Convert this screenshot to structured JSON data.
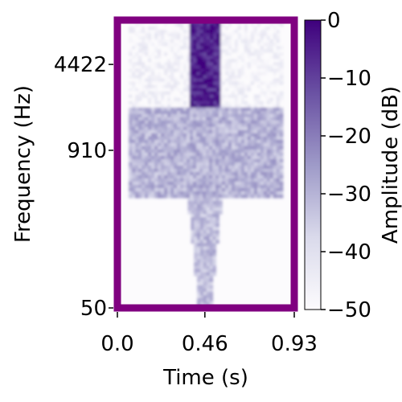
{
  "chart_data": {
    "type": "heatmap",
    "title": "",
    "xlabel": "Time (s)",
    "ylabel": "Frequency (Hz)",
    "xlim": [
      0.0,
      0.93
    ],
    "ylim": [
      50,
      10000
    ],
    "y_scale": "log",
    "x_ticks": [
      {
        "value": 0.0,
        "label": "0.0"
      },
      {
        "value": 0.46,
        "label": "0.46"
      },
      {
        "value": 0.93,
        "label": "0.93"
      }
    ],
    "y_ticks": [
      {
        "value": 50,
        "label": "50"
      },
      {
        "value": 910,
        "label": "910"
      },
      {
        "value": 4422,
        "label": "4422"
      }
    ],
    "colorbar": {
      "label": "Amplitude (dB)",
      "range": [
        -50,
        0
      ],
      "ticks": [
        {
          "value": 0,
          "label": "0"
        },
        {
          "value": -10,
          "label": "−10"
        },
        {
          "value": -20,
          "label": "−20"
        },
        {
          "value": -30,
          "label": "−30"
        },
        {
          "value": -40,
          "label": "−40"
        },
        {
          "value": -50,
          "label": "−50"
        }
      ],
      "colormap": "Purples"
    },
    "frame_color": "#800080",
    "regions": [
      {
        "t": [
          0.06,
          0.87
        ],
        "f": [
          2000,
          10000
        ],
        "level_db": -48
      },
      {
        "t": [
          0.38,
          0.54
        ],
        "f": [
          2000,
          10000
        ],
        "level_db": -5
      },
      {
        "t": [
          0.06,
          0.87
        ],
        "f": [
          380,
          2000
        ],
        "level_db": -30
      },
      {
        "t": [
          0.37,
          0.55
        ],
        "f": [
          50,
          380
        ],
        "level_db": -32
      }
    ]
  }
}
